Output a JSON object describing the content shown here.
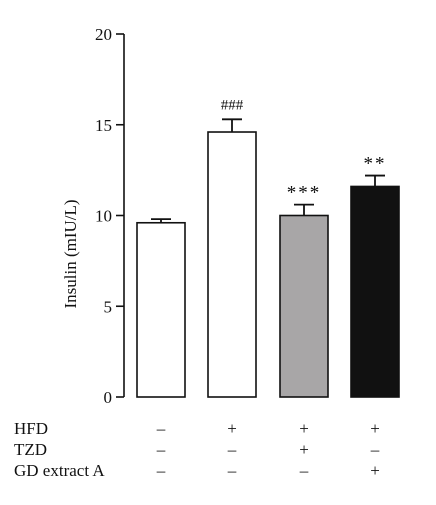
{
  "chart_data": {
    "type": "bar",
    "title": "",
    "xlabel": "",
    "ylabel": "Insulin (mIU/L)",
    "ylim": [
      0,
      20
    ],
    "yticks": [
      0,
      5,
      10,
      15,
      20
    ],
    "grid": false,
    "legend": "none",
    "categories": [
      "HFD-/TZD-/GD-",
      "HFD+",
      "HFD+TZD",
      "HFD+GD extract A"
    ],
    "values": [
      9.6,
      14.6,
      10.0,
      11.6
    ],
    "errors": [
      0.2,
      0.7,
      0.6,
      0.6
    ],
    "bar_colors": [
      "#ffffff",
      "#ffffff",
      "#a8a6a7",
      "#111111"
    ],
    "significance": [
      "",
      "###",
      "***",
      "**"
    ],
    "treatment_rows": [
      {
        "label": "HFD",
        "signs": [
          "–",
          "+",
          "+",
          "+"
        ]
      },
      {
        "label": "TZD",
        "signs": [
          "–",
          "–",
          "+",
          "–"
        ]
      },
      {
        "label": "GD extract A",
        "signs": [
          "–",
          "–",
          "–",
          "+"
        ]
      }
    ]
  }
}
